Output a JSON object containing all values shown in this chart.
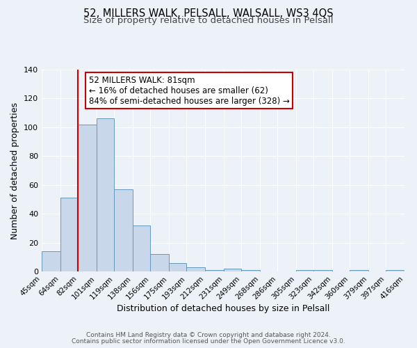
{
  "title": "52, MILLERS WALK, PELSALL, WALSALL, WS3 4QS",
  "subtitle": "Size of property relative to detached houses in Pelsall",
  "xlabel": "Distribution of detached houses by size in Pelsall",
  "ylabel": "Number of detached properties",
  "bin_edges": [
    45,
    64,
    82,
    101,
    119,
    138,
    156,
    175,
    193,
    212,
    231,
    249,
    268,
    286,
    305,
    323,
    342,
    360,
    379,
    397,
    416
  ],
  "bin_counts": [
    14,
    51,
    102,
    106,
    57,
    32,
    12,
    6,
    3,
    1,
    2,
    1,
    0,
    0,
    1,
    1,
    0,
    1,
    0,
    1
  ],
  "tick_labels": [
    "45sqm",
    "64sqm",
    "82sqm",
    "101sqm",
    "119sqm",
    "138sqm",
    "156sqm",
    "175sqm",
    "193sqm",
    "212sqm",
    "231sqm",
    "249sqm",
    "268sqm",
    "286sqm",
    "305sqm",
    "323sqm",
    "342sqm",
    "360sqm",
    "379sqm",
    "397sqm",
    "416sqm"
  ],
  "bar_color": "#c8d8ea",
  "bar_edge_color": "#6699bb",
  "property_line_x": 82,
  "property_line_color": "#cc0000",
  "annotation_line1": "52 MILLERS WALK: 81sqm",
  "annotation_line2": "← 16% of detached houses are smaller (62)",
  "annotation_line3": "84% of semi-detached houses are larger (328) →",
  "ylim": [
    0,
    140
  ],
  "yticks": [
    0,
    20,
    40,
    60,
    80,
    100,
    120,
    140
  ],
  "footer1": "Contains HM Land Registry data © Crown copyright and database right 2024.",
  "footer2": "Contains public sector information licensed under the Open Government Licence v3.0.",
  "bg_color": "#edf2f8",
  "plot_bg_color": "#edf2f8",
  "grid_color": "#ffffff",
  "title_fontsize": 10.5,
  "subtitle_fontsize": 9.5,
  "axis_label_fontsize": 9,
  "tick_fontsize": 7.5,
  "annotation_fontsize": 8.5,
  "footer_fontsize": 6.5
}
